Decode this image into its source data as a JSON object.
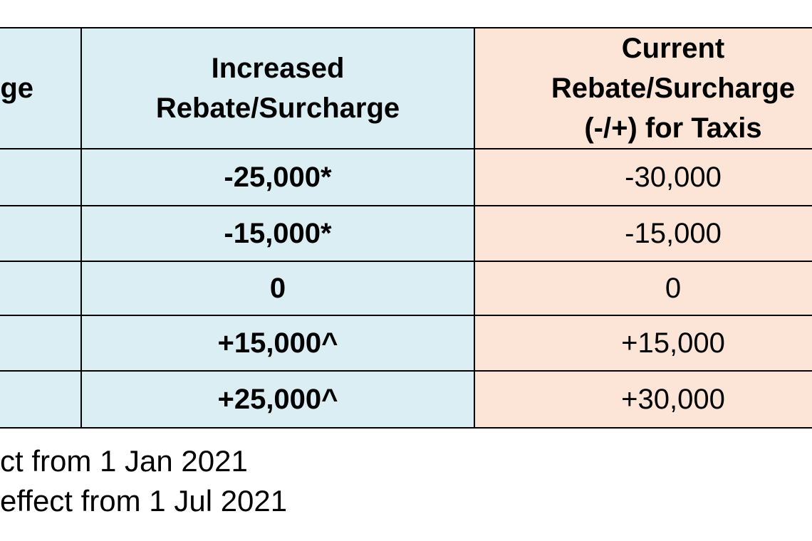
{
  "table": {
    "header": [
      [
        "ge"
      ],
      [
        "Increased",
        "Rebate/Surcharge"
      ],
      [
        "Current",
        "Rebate/Surcharge",
        "(-/+) for Taxis"
      ]
    ],
    "rows": [
      [
        "-25,000*",
        "-30,000"
      ],
      [
        "-15,000*",
        "-15,000"
      ],
      [
        "0",
        "0"
      ],
      [
        "+15,000^",
        "+15,000"
      ],
      [
        "+25,000^",
        "+30,000"
      ]
    ]
  },
  "footnotes": [
    "ct from 1 Jan 2021",
    "effect from 1 Jul 2021"
  ]
}
